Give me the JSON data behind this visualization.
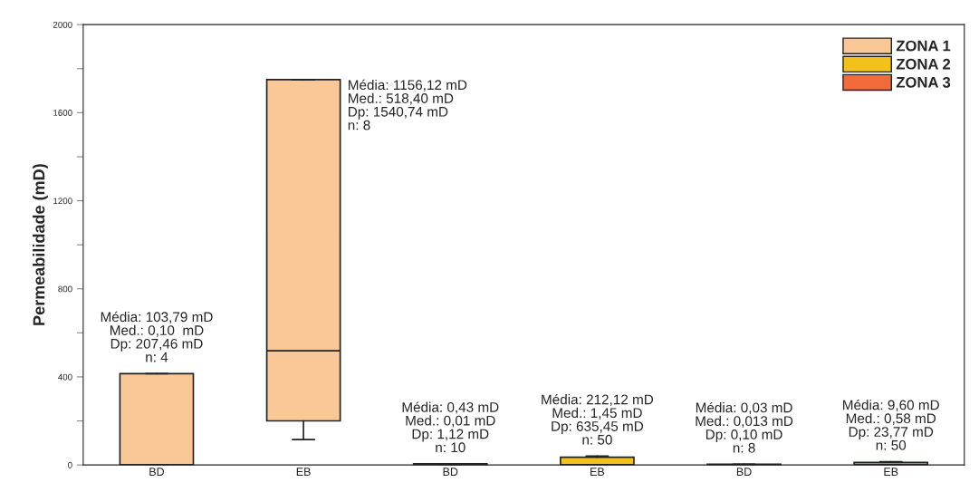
{
  "chart_data": {
    "type": "box",
    "categories": [
      "BD",
      "EB",
      "BD",
      "EB",
      "BD",
      "EB"
    ],
    "ylabel": "Permeabilidade (mD)",
    "ylim": [
      0,
      2000
    ],
    "yticks": [
      0,
      {
        "value": 200,
        "label": null
      },
      400,
      {
        "value": 600,
        "label": null
      },
      800,
      {
        "value": 1000,
        "label": null
      },
      1200,
      {
        "value": 1400,
        "label": null
      },
      1600,
      {
        "value": 1800,
        "label": null
      },
      2000
    ],
    "series": [
      {
        "name": "ZONA 1",
        "color": "#f9c896",
        "boxes": [
          {
            "low": 0,
            "q1": 0,
            "median": 0.1,
            "q3": 415,
            "high": 415
          },
          {
            "low": 115,
            "q1": 200,
            "median": 518.4,
            "q3": 1750,
            "high": 1750
          },
          null,
          null,
          null,
          null
        ]
      },
      {
        "name": "ZONA 2",
        "color": "#f2c21a",
        "boxes": [
          null,
          null,
          {
            "low": 0,
            "q1": 0,
            "median": 0.01,
            "q3": 5,
            "high": 5
          },
          {
            "low": 0,
            "q1": 0,
            "median": 1.45,
            "q3": 35,
            "high": 40
          },
          null,
          null
        ]
      },
      {
        "name": "ZONA 3",
        "color": "#f26b3a",
        "boxes": [
          null,
          null,
          null,
          null,
          {
            "low": 0,
            "q1": 0,
            "median": 0.013,
            "q3": 3,
            "high": 3
          },
          {
            "low": 0,
            "q1": 0,
            "median": 0.58,
            "q3": 12,
            "high": 15
          }
        ]
      }
    ],
    "annotations": [
      "Média: 103,79 mD\nMed.: 0,10  mD\nDp: 207,46 mD\nn: 4",
      "Média: 1156,12 mD\nMed.: 518,40 mD\nDp: 1540,74 mD\nn: 8",
      "Média: 0,43 mD\nMed.: 0,01 mD\nDp: 1,12 mD\nn: 10",
      "Média: 212,12 mD\nMed.: 1,45 mD\nDp: 635,45 mD\nn: 50",
      "Média: 0,03 mD\nMed.: 0,013 mD\nDp: 0,10 mD\nn: 8",
      "Média: 9,60 mD\nMed.: 0,58 mD\nDp: 23,77 mD\nn: 50"
    ],
    "grid": false,
    "legend": "top right"
  }
}
